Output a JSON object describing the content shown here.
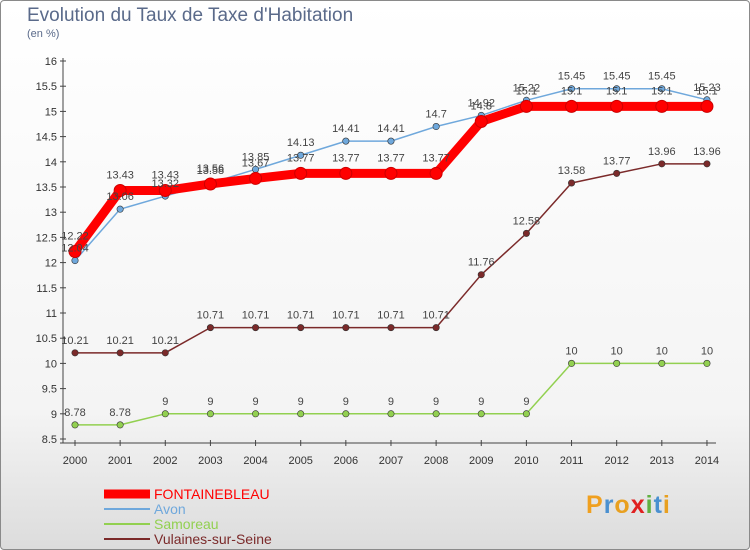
{
  "chart_data": {
    "type": "line",
    "title": "Evolution du Taux de Taxe d'Habitation",
    "subtitle": "(en %)",
    "x": [
      "2000",
      "2001",
      "2002",
      "2003",
      "2004",
      "2005",
      "2006",
      "2007",
      "2008",
      "2009",
      "2010",
      "2011",
      "2012",
      "2013",
      "2014"
    ],
    "ylim": [
      8.5,
      16
    ],
    "yticks": [
      "8.5",
      "9",
      "9.5",
      "10",
      "10.5",
      "11",
      "11.5",
      "12",
      "12.5",
      "13",
      "13.5",
      "14",
      "14.5",
      "15",
      "15.5",
      "16"
    ],
    "grid": false,
    "legend_position": "bottom-left",
    "series": [
      {
        "name": "FONTAINEBLEAU",
        "color": "#ff0000",
        "values": [
          12.22,
          13.43,
          13.43,
          13.56,
          13.67,
          13.77,
          13.77,
          13.77,
          13.77,
          14.8,
          15.1,
          15.1,
          15.1,
          15.1,
          15.1
        ],
        "labels": [
          "12.22",
          "13.43",
          "13.43",
          "13.56",
          "13.67",
          "13.77",
          "13.77",
          "13.77",
          "13.77",
          "14.8",
          "15.1",
          "15.1",
          "15.1",
          "15.1",
          "15.1"
        ]
      },
      {
        "name": "Avon",
        "color": "#6fa8dc",
        "values": [
          12.04,
          13.06,
          13.32,
          13.58,
          13.85,
          14.13,
          14.41,
          14.41,
          14.7,
          14.92,
          15.22,
          15.45,
          15.45,
          15.45,
          15.23
        ],
        "labels": [
          "12.04",
          "13.06",
          "13.32",
          "13.58",
          "13.85",
          "14.13",
          "14.41",
          "14.41",
          "14.7",
          "14.92",
          "15.22",
          "15.45",
          "15.45",
          "15.45",
          "15.23"
        ]
      },
      {
        "name": "Samoreau",
        "color": "#92d050",
        "values": [
          8.78,
          8.78,
          9,
          9,
          9,
          9,
          9,
          9,
          9,
          9,
          9,
          10,
          10,
          10,
          10
        ],
        "labels": [
          "8.78",
          "8.78",
          "9",
          "9",
          "9",
          "9",
          "9",
          "9",
          "9",
          "9",
          "9",
          "10",
          "10",
          "10",
          "10"
        ]
      },
      {
        "name": "Vulaines-sur-Seine",
        "color": "#7b2a2a",
        "values": [
          10.21,
          10.21,
          10.21,
          10.71,
          10.71,
          10.71,
          10.71,
          10.71,
          10.71,
          11.76,
          12.58,
          13.58,
          13.77,
          13.96,
          13.96
        ],
        "labels": [
          "10.21",
          "10.21",
          "10.21",
          "10.71",
          "10.71",
          "10.71",
          "10.71",
          "10.71",
          "10.71",
          "11.76",
          "12.58",
          "13.58",
          "13.77",
          "13.96",
          "13.96"
        ]
      }
    ]
  },
  "logo": {
    "text": "Proxiti",
    "colors": [
      "#f0a020",
      "#4a90d0",
      "#e8a020",
      "#e02020",
      "#60b040",
      "#4a90d0",
      "#e8a020"
    ]
  }
}
